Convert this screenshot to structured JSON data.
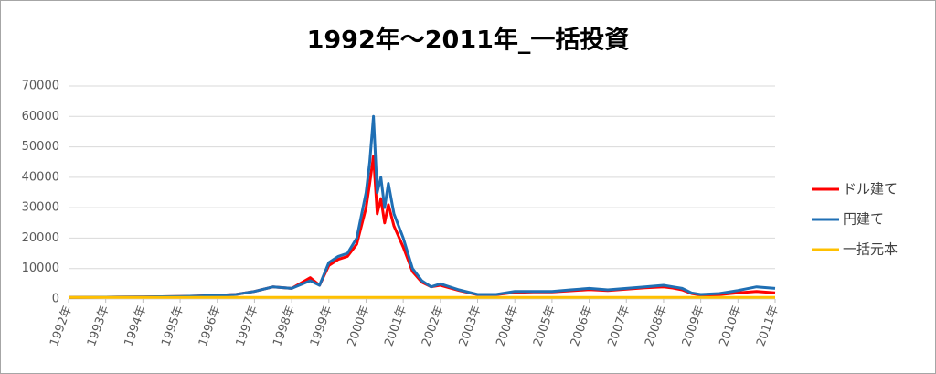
{
  "chart_data": {
    "type": "line",
    "title": "1992年～2011年_一括投資",
    "x": [
      1992,
      1993,
      1994,
      1995,
      1995.5,
      1996,
      1996.5,
      1997,
      1997.5,
      1998,
      1998.5,
      1998.75,
      1999,
      1999.25,
      1999.5,
      1999.75,
      2000,
      2000.1,
      2000.2,
      2000.3,
      2000.4,
      2000.5,
      2000.6,
      2000.75,
      2001,
      2001.25,
      2001.5,
      2001.75,
      2002,
      2002.5,
      2003,
      2003.5,
      2004,
      2004.5,
      2005,
      2005.5,
      2006,
      2006.5,
      2007,
      2007.5,
      2008,
      2008.25,
      2008.5,
      2008.75,
      2009,
      2009.5,
      2010,
      2010.5,
      2011
    ],
    "series": [
      {
        "name": "ドル建て",
        "color": "#ff0000",
        "values": [
          500,
          600,
          700,
          800,
          1000,
          1200,
          1500,
          2500,
          4000,
          3500,
          7000,
          4500,
          11000,
          13000,
          14000,
          18000,
          30000,
          38000,
          47000,
          28000,
          33000,
          25000,
          31000,
          24000,
          17000,
          9000,
          5500,
          4000,
          4500,
          2800,
          1400,
          1400,
          2200,
          2300,
          2300,
          2700,
          3100,
          2800,
          3200,
          3700,
          4000,
          3600,
          3000,
          1800,
          1300,
          1400,
          2000,
          2500,
          2000
        ]
      },
      {
        "name": "円建て",
        "color": "#1f6fb4",
        "values": [
          500,
          600,
          700,
          800,
          1000,
          1200,
          1500,
          2500,
          4000,
          3500,
          6000,
          4500,
          12000,
          14000,
          15000,
          20000,
          35000,
          45000,
          60000,
          35000,
          40000,
          30000,
          38000,
          28000,
          20000,
          10000,
          6000,
          4000,
          5000,
          3000,
          1500,
          1500,
          2500,
          2500,
          2500,
          3000,
          3500,
          3000,
          3500,
          4000,
          4500,
          4000,
          3500,
          2000,
          1500,
          1800,
          2800,
          4000,
          3500
        ]
      },
      {
        "name": "一括元本",
        "color": "#ffc000",
        "values": [
          500,
          500,
          500,
          500,
          500,
          500,
          500,
          500,
          500,
          500,
          500,
          500,
          500,
          500,
          500,
          500,
          500,
          500,
          500,
          500,
          500,
          500,
          500,
          500,
          500,
          500,
          500,
          500,
          500,
          500,
          500,
          500,
          500,
          500,
          500,
          500,
          500,
          500,
          500,
          500,
          500,
          500,
          500,
          500,
          500,
          500,
          500,
          500,
          500
        ]
      }
    ],
    "xlim": [
      1992,
      2011
    ],
    "xticks": [
      {
        "value": 1992,
        "label": "1992年"
      },
      {
        "value": 1993,
        "label": "1993年"
      },
      {
        "value": 1994,
        "label": "1994年"
      },
      {
        "value": 1995,
        "label": "1995年"
      },
      {
        "value": 1996,
        "label": "1996年"
      },
      {
        "value": 1997,
        "label": "1997年"
      },
      {
        "value": 1998,
        "label": "1998年"
      },
      {
        "value": 1999,
        "label": "1999年"
      },
      {
        "value": 2000,
        "label": "2000年"
      },
      {
        "value": 2001,
        "label": "2001年"
      },
      {
        "value": 2002,
        "label": "2002年"
      },
      {
        "value": 2003,
        "label": "2003年"
      },
      {
        "value": 2004,
        "label": "2004年"
      },
      {
        "value": 2005,
        "label": "2005年"
      },
      {
        "value": 2006,
        "label": "2006年"
      },
      {
        "value": 2007,
        "label": "2007年"
      },
      {
        "value": 2008,
        "label": "2008年"
      },
      {
        "value": 2009,
        "label": "2009年"
      },
      {
        "value": 2010,
        "label": "2010年"
      },
      {
        "value": 2011,
        "label": "2011年"
      }
    ],
    "ylim": [
      0,
      70000
    ],
    "yticks": [
      0,
      10000,
      20000,
      30000,
      40000,
      50000,
      60000,
      70000
    ],
    "grid": true,
    "legend": "right"
  }
}
